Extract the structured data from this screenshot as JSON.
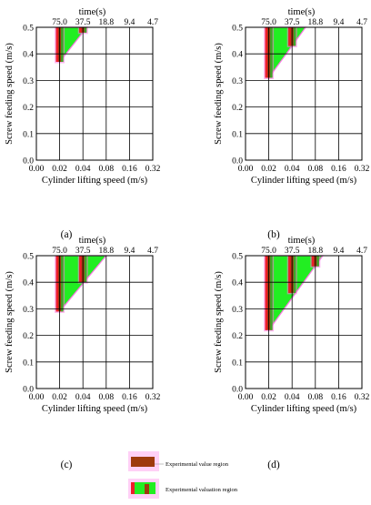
{
  "chart_data": [
    {
      "type": "area",
      "panel_label": "(a)",
      "top_axis_label": "time(s)",
      "top_ticks": [
        "75.0",
        "37.5",
        "18.8",
        "9.4",
        "4.7"
      ],
      "xlabel": "Cylinder lifting speed (m/s)",
      "ylabel": "Screw feeding speed (m/s)",
      "x_ticks": [
        "0.00",
        "0.02",
        "0.04",
        "0.08",
        "0.16",
        "0.32"
      ],
      "y_ticks": [
        "0.0",
        "0.1",
        "0.2",
        "0.3",
        "0.4",
        "0.5"
      ],
      "ylim": [
        0,
        0.5
      ],
      "valuation_region": [
        [
          0.02,
          0.5
        ],
        [
          0.045,
          0.5
        ],
        [
          0.02,
          0.37
        ]
      ],
      "experimental_regions": [
        {
          "x": 0.02,
          "y_min": 0.37,
          "y_max": 0.5
        },
        {
          "x": 0.04,
          "y_min": 0.48,
          "y_max": 0.5
        }
      ]
    },
    {
      "type": "area",
      "panel_label": "(b)",
      "top_axis_label": "time(s)",
      "top_ticks": [
        "75.0",
        "37.5",
        "18.8",
        "9.4",
        "4.7"
      ],
      "xlabel": "Cylinder lifting speed (m/s)",
      "ylabel": "Screw feeding speed (m/s)",
      "x_ticks": [
        "0.00",
        "0.02",
        "0.04",
        "0.08",
        "0.16",
        "0.32"
      ],
      "y_ticks": [
        "0.0",
        "0.1",
        "0.2",
        "0.3",
        "0.4",
        "0.5"
      ],
      "ylim": [
        0,
        0.5
      ],
      "valuation_region": [
        [
          0.02,
          0.5
        ],
        [
          0.06,
          0.5
        ],
        [
          0.02,
          0.31
        ]
      ],
      "experimental_regions": [
        {
          "x": 0.02,
          "y_min": 0.31,
          "y_max": 0.5
        },
        {
          "x": 0.04,
          "y_min": 0.43,
          "y_max": 0.5
        }
      ]
    },
    {
      "type": "area",
      "panel_label": "(c)",
      "top_axis_label": "time(s)",
      "top_ticks": [
        "75.0",
        "37.5",
        "18.8",
        "9.4",
        "4.7"
      ],
      "xlabel": "Cylinder lifting speed (m/s)",
      "ylabel": "Screw feeding speed (m/s)",
      "x_ticks": [
        "0.00",
        "0.02",
        "0.04",
        "0.08",
        "0.16",
        "0.32"
      ],
      "y_ticks": [
        "0.0",
        "0.1",
        "0.2",
        "0.3",
        "0.4",
        "0.5"
      ],
      "ylim": [
        0,
        0.5
      ],
      "valuation_region": [
        [
          0.02,
          0.5
        ],
        [
          0.08,
          0.5
        ],
        [
          0.02,
          0.29
        ]
      ],
      "experimental_regions": [
        {
          "x": 0.02,
          "y_min": 0.29,
          "y_max": 0.5
        },
        {
          "x": 0.04,
          "y_min": 0.4,
          "y_max": 0.5
        }
      ]
    },
    {
      "type": "area",
      "panel_label": "(d)",
      "top_axis_label": "time(s)",
      "top_ticks": [
        "75.0",
        "37.5",
        "18.8",
        "9.4",
        "4.7"
      ],
      "xlabel": "Cylinder lifting speed (m/s)",
      "ylabel": "Screw feeding speed (m/s)",
      "x_ticks": [
        "0.00",
        "0.02",
        "0.04",
        "0.08",
        "0.16",
        "0.32"
      ],
      "y_ticks": [
        "0.0",
        "0.1",
        "0.2",
        "0.3",
        "0.4",
        "0.5"
      ],
      "ylim": [
        0,
        0.5
      ],
      "valuation_region": [
        [
          0.02,
          0.5
        ],
        [
          0.1,
          0.5
        ],
        [
          0.02,
          0.22
        ]
      ],
      "experimental_regions": [
        {
          "x": 0.02,
          "y_min": 0.22,
          "y_max": 0.5
        },
        {
          "x": 0.04,
          "y_min": 0.36,
          "y_max": 0.5
        },
        {
          "x": 0.08,
          "y_min": 0.46,
          "y_max": 0.5
        }
      ]
    }
  ],
  "legend": {
    "items": [
      {
        "label": "Experimental value region",
        "kind": "experimental"
      },
      {
        "label": "Experimental valuation region",
        "kind": "valuation"
      }
    ]
  },
  "colors": {
    "valuation_fill": "#22ee22",
    "valuation_edge_pink": "#ff77e6",
    "experimental_fill": "#9e3a0c",
    "experimental_edge_red": "#ee1d2a",
    "experimental_edge_green": "#3da52a",
    "grid": "#000000"
  }
}
